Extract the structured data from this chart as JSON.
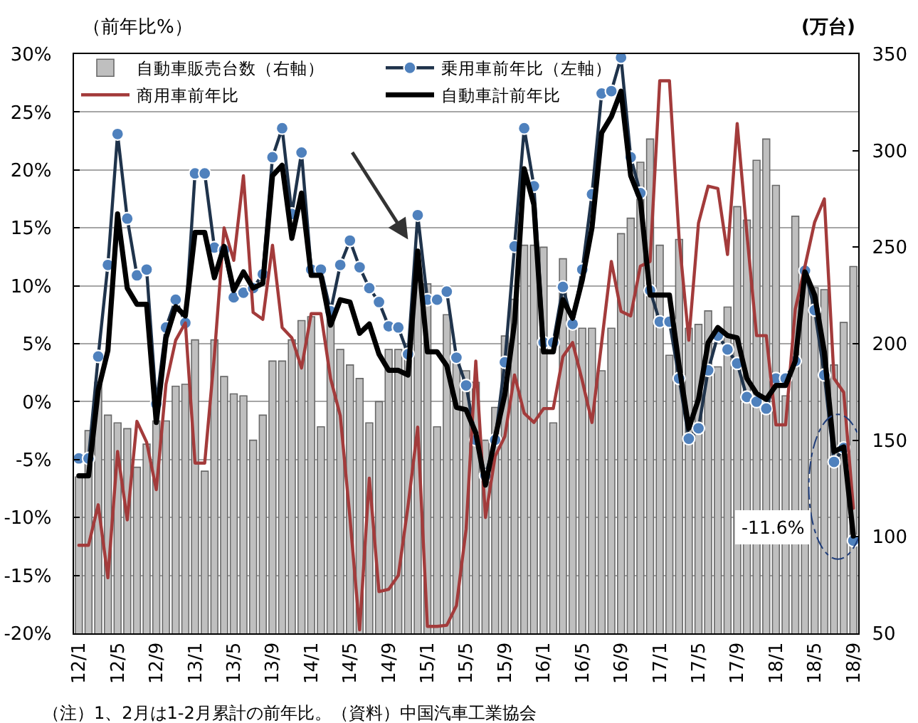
{
  "chart_data": {
    "type": "bar",
    "ylabel": "（前年比%）",
    "y2label": "(万台)",
    "categories": [
      "12/1",
      null,
      null,
      null,
      "12/5",
      null,
      null,
      null,
      "12/9",
      null,
      null,
      null,
      "13/1",
      null,
      null,
      null,
      "13/5",
      null,
      null,
      null,
      "13/9",
      null,
      null,
      null,
      "14/1",
      null,
      null,
      null,
      "14/5",
      null,
      null,
      null,
      "14/9",
      null,
      null,
      null,
      "15/1",
      null,
      null,
      null,
      "15/5",
      null,
      null,
      null,
      "15/9",
      null,
      null,
      null,
      "16/1",
      null,
      null,
      null,
      "16/5",
      null,
      null,
      null,
      "16/9",
      null,
      null,
      null,
      "17/1",
      null,
      null,
      null,
      "17/5",
      null,
      null,
      null,
      "17/9",
      null,
      null,
      null,
      "18/1",
      null,
      null,
      null,
      "18/5",
      null,
      null,
      null,
      "18/9"
    ],
    "series": [
      {
        "name": "自動車販売台数（右軸）",
        "axis": "y2",
        "color": "#bfbfbf",
        "values": [
          131,
          155,
          180,
          163,
          159,
          156,
          136,
          148,
          160,
          160,
          178,
          179,
          202,
          134,
          202,
          183,
          174,
          173,
          150,
          163,
          191,
          191,
          202,
          212,
          214,
          157,
          214,
          197,
          189,
          182,
          159,
          170,
          197,
          197,
          200,
          232,
          231,
          157,
          215,
          190,
          186,
          180,
          150,
          167,
          204,
          223,
          251,
          251,
          250,
          159,
          244,
          210,
          208,
          208,
          186,
          208,
          257,
          265,
          294,
          306,
          251,
          194,
          254,
          208,
          210,
          217,
          188,
          219,
          271,
          264,
          295,
          306,
          282,
          173,
          266,
          232,
          229,
          228,
          189,
          211,
          240
        ]
      },
      {
        "name": "乗用車前年比（左軸）",
        "type": "line",
        "marker": "circle",
        "color": "#4f81bd",
        "values": [
          -4.9,
          -4.9,
          3.9,
          11.8,
          23.1,
          15.8,
          10.9,
          11.4,
          -0.2,
          6.4,
          8.8,
          6.8,
          19.7,
          19.7,
          13.3,
          13.1,
          9.0,
          9.4,
          9.8,
          11.0,
          21.1,
          23.6,
          16.2,
          21.5,
          11.4,
          11.4,
          7.8,
          11.8,
          13.9,
          11.6,
          9.8,
          8.6,
          6.5,
          6.4,
          4.1,
          16.1,
          8.8,
          8.8,
          9.5,
          3.8,
          1.4,
          -3.3,
          -6.4,
          -3.3,
          3.4,
          13.4,
          23.6,
          18.6,
          5.1,
          5.1,
          9.9,
          6.7,
          11.4,
          17.9,
          26.6,
          26.8,
          29.7,
          21.1,
          18.0,
          9.6,
          6.9,
          6.9,
          2.0,
          -3.2,
          -2.3,
          2.7,
          5.7,
          4.5,
          3.3,
          0.4,
          0.0,
          -0.6,
          2.0,
          2.0,
          3.5,
          11.3,
          7.9,
          2.3,
          -5.2,
          -4.0,
          -12.0
        ]
      },
      {
        "name": "商用車前年比",
        "type": "line",
        "color": "#a33b3b",
        "values": [
          -12.4,
          -12.4,
          -8.9,
          -15.2,
          -4.3,
          -10.2,
          -1.7,
          -3.5,
          -7.6,
          1.5,
          5.3,
          6.8,
          -5.3,
          -5.3,
          4.0,
          15.0,
          12.2,
          19.5,
          7.7,
          7.1,
          13.5,
          6.4,
          5.5,
          2.9,
          7.6,
          7.6,
          2.0,
          -1.2,
          -10.0,
          -19.7,
          -6.6,
          -16.4,
          -16.2,
          -15.0,
          -9.0,
          -2.2,
          -19.4,
          -19.4,
          -19.3,
          -17.6,
          -11.0,
          3.5,
          -10.0,
          -4.7,
          -3.0,
          2.3,
          -1.0,
          -1.8,
          -0.6,
          -0.6,
          3.9,
          5.1,
          1.8,
          -1.8,
          5.1,
          12.1,
          7.8,
          7.4,
          11.7,
          12.1,
          27.7,
          27.7,
          14.1,
          5.3,
          15.4,
          18.6,
          18.4,
          12.7,
          24.0,
          14.5,
          5.7,
          5.7,
          -2.0,
          -2.0,
          8.0,
          11.7,
          15.5,
          17.5,
          2.0,
          0.8,
          -9.2
        ]
      },
      {
        "name": "自動車計前年比",
        "type": "line",
        "color": "#000000",
        "values": [
          -6.4,
          -6.4,
          1.0,
          4.4,
          16.2,
          9.8,
          8.4,
          8.4,
          -1.8,
          5.5,
          8.2,
          7.4,
          14.6,
          14.6,
          10.7,
          13.4,
          9.6,
          11.2,
          9.8,
          10.2,
          19.5,
          20.4,
          14.1,
          18.0,
          10.9,
          10.9,
          6.6,
          8.8,
          8.6,
          5.9,
          6.7,
          4.1,
          2.7,
          2.7,
          2.3,
          13.0,
          4.3,
          4.3,
          3.1,
          -0.5,
          -0.7,
          -2.7,
          -7.2,
          -3.1,
          0.6,
          6.8,
          20.1,
          17.0,
          4.3,
          4.3,
          8.8,
          7.2,
          10.5,
          15.0,
          23.2,
          24.6,
          26.8,
          19.5,
          17.4,
          9.2,
          9.2,
          9.2,
          3.1,
          -2.3,
          0.2,
          5.1,
          6.4,
          5.7,
          5.5,
          2.0,
          0.7,
          0.2,
          1.4,
          1.4,
          3.5,
          11.2,
          9.2,
          4.3,
          -4.3,
          -3.9,
          -11.6
        ]
      }
    ],
    "ylim": [
      -20,
      30
    ],
    "yticks": [
      {
        "value": -20,
        "label": "-20%"
      },
      {
        "value": -15,
        "label": "-15%"
      },
      {
        "value": -10,
        "label": "-10%"
      },
      {
        "value": -5,
        "label": "-5%"
      },
      {
        "value": 0,
        "label": "0%"
      },
      {
        "value": 5,
        "label": "5%"
      },
      {
        "value": 10,
        "label": "10%"
      },
      {
        "value": 15,
        "label": "15%"
      },
      {
        "value": 20,
        "label": "20%"
      },
      {
        "value": 25,
        "label": "25%"
      },
      {
        "value": 30,
        "label": "30%"
      }
    ],
    "y2lim": [
      50,
      350
    ],
    "y2ticks": [
      50,
      100,
      150,
      200,
      250,
      300,
      350
    ],
    "grid": "y",
    "legend": "top left",
    "marker": "none",
    "annotations": [
      {
        "text": "-11.6%",
        "x": "18/9",
        "y": -11.6
      },
      "（注）1、2月は1-2月累計の前年比。（資料）中国汽車工業協会"
    ]
  }
}
